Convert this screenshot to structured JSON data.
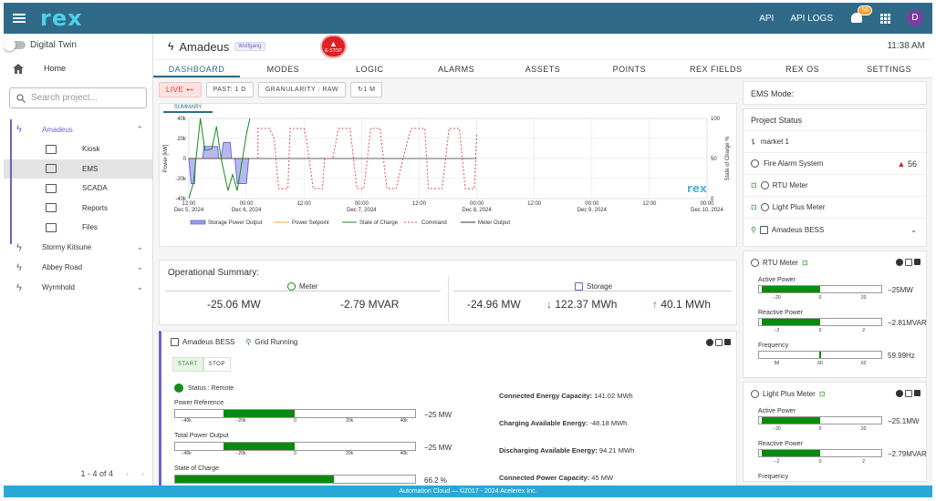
{
  "topbar": {
    "logo": "rex",
    "api": "API",
    "api_logs": "API LOGS",
    "notif_count": "56",
    "avatar": "D"
  },
  "sidebar": {
    "digital_twin": "Digital Twin",
    "home": "Home",
    "search_placeholder": "Search project...",
    "projects": [
      {
        "name": "Amadeus",
        "subs": [
          "Kiosk",
          "EMS",
          "SCADA",
          "Reports",
          "Files"
        ]
      },
      {
        "name": "Stormy Kitsune"
      },
      {
        "name": "Abbey Road"
      },
      {
        "name": "Wyrmhold"
      }
    ],
    "pager": "1 - 4 of 4",
    "prev": "‹",
    "next": "›"
  },
  "header": {
    "title": "Amadeus",
    "tag": "Wolfgang",
    "estop_label": "E-STOP",
    "time": "11:38 AM"
  },
  "tabs": [
    "DASHBOARD",
    "MODES",
    "LOGIC",
    "ALARMS",
    "ASSETS",
    "POINTS",
    "REX FIELDS",
    "REX OS",
    "SETTINGS"
  ],
  "controls": {
    "live": "LIVE",
    "past": "PAST: 1 D",
    "granularity": "GRANULARITY : RAW",
    "refresh": "1 M"
  },
  "chart": {
    "tab": "SUMMARY",
    "watermark": "rex"
  },
  "chart_data": {
    "type": "line",
    "ylabel": "Power [kW]",
    "y2label": "State of Charge %",
    "ylim": [
      -40000,
      40000
    ],
    "y2lim": [
      0,
      100
    ],
    "yticks": [
      "40k",
      "20k",
      "0",
      "-20k",
      "-40k"
    ],
    "y2ticks": [
      "100",
      "50",
      "0"
    ],
    "xticks": [
      {
        "t": "12:00",
        "d": "Dec 5, 2024"
      },
      {
        "t": "00:00",
        "d": "Dec 6, 2024"
      },
      {
        "t": "12:00",
        "d": ""
      },
      {
        "t": "00:00",
        "d": "Dec 7, 2024"
      },
      {
        "t": "12:00",
        "d": ""
      },
      {
        "t": "00:00",
        "d": "Dec 8, 2024"
      },
      {
        "t": "12:00",
        "d": ""
      },
      {
        "t": "00:00",
        "d": "Dec 9, 2024"
      },
      {
        "t": "12:00",
        "d": ""
      },
      {
        "t": "00:00",
        "d": "Dec 10, 2024"
      }
    ],
    "x": [
      0,
      0.5,
      1,
      1.5,
      2,
      2.5,
      3,
      3.5,
      4,
      4.5
    ],
    "series": [
      {
        "name": "Storage Power Output",
        "color": "#6a6ae0",
        "points": [
          [
            0.0,
            0
          ],
          [
            0.02,
            -25000
          ],
          [
            0.05,
            -25000
          ],
          [
            0.06,
            0
          ],
          [
            0.12,
            0
          ],
          [
            0.13,
            12000
          ],
          [
            0.25,
            12000
          ],
          [
            0.26,
            0
          ],
          [
            0.28,
            0
          ],
          [
            0.3,
            16000
          ],
          [
            0.36,
            16000
          ],
          [
            0.37,
            0
          ],
          [
            0.4,
            0
          ],
          [
            0.42,
            -25000
          ],
          [
            0.5,
            -25000
          ],
          [
            0.52,
            0
          ],
          [
            0.53,
            0
          ]
        ]
      },
      {
        "name": "Power Setpoint",
        "color": "#f0a030",
        "points": [
          [
            0.0,
            0
          ],
          [
            0.53,
            0
          ]
        ]
      },
      {
        "name": "State of Charge",
        "color": "#1a8a1a",
        "points": [
          [
            0.0,
            0
          ],
          [
            0.04,
            20
          ],
          [
            0.1,
            100
          ],
          [
            0.14,
            60
          ],
          [
            0.2,
            62
          ],
          [
            0.24,
            90
          ],
          [
            0.28,
            50
          ],
          [
            0.34,
            10
          ],
          [
            0.38,
            30
          ],
          [
            0.42,
            10
          ],
          [
            0.5,
            80
          ],
          [
            0.53,
            100
          ]
        ]
      },
      {
        "name": "Command",
        "color": "#e05050",
        "points": [
          [
            0.6,
            0
          ],
          [
            0.6,
            30000
          ],
          [
            0.7,
            30000
          ],
          [
            0.74,
            20000
          ],
          [
            0.78,
            -30000
          ],
          [
            0.86,
            -30000
          ],
          [
            0.88,
            30000
          ],
          [
            1.0,
            30000
          ],
          [
            1.02,
            20000
          ],
          [
            1.08,
            -30000
          ],
          [
            1.16,
            -30000
          ],
          [
            1.18,
            0
          ],
          [
            1.25,
            0
          ],
          [
            1.3,
            30000
          ],
          [
            1.4,
            30000
          ],
          [
            1.46,
            -30000
          ],
          [
            1.52,
            -30000
          ],
          [
            1.58,
            30000
          ],
          [
            1.66,
            30000
          ],
          [
            1.72,
            -30000
          ],
          [
            1.8,
            -30000
          ],
          [
            1.86,
            0
          ],
          [
            1.93,
            30000
          ],
          [
            2.05,
            30000
          ],
          [
            2.08,
            -30000
          ],
          [
            2.2,
            -30000
          ],
          [
            2.26,
            30000
          ],
          [
            2.35,
            30000
          ],
          [
            2.4,
            -30000
          ],
          [
            2.48,
            -30000
          ],
          [
            2.5,
            25000
          ]
        ]
      },
      {
        "name": "Meter Output",
        "color": "#333333",
        "points": [
          [
            0.0,
            0
          ],
          [
            2.5,
            0
          ]
        ]
      }
    ],
    "legend": [
      "Storage Power Output",
      "Power Setpoint",
      "State of Charge",
      "Command",
      "Meter Output"
    ]
  },
  "op_summary": {
    "title": "Operational Summary:",
    "meter_label": "Meter",
    "storage_label": "Storage",
    "meter_mw": "-25.06 MW",
    "meter_mvar": "-2.79 MVAR",
    "storage_mw": "-24.96 MW",
    "storage_down": "122.37 MWh",
    "storage_up": "40.1 MWh"
  },
  "bess": {
    "name": "Amadeus BESS",
    "status": "Grid Running",
    "start": "START",
    "stop": "STOP",
    "status_remote": "Status : Remote",
    "bars": [
      {
        "label": "Power Reference",
        "value": "−25 MW",
        "fill_from": 0.5,
        "fill_to": 0.2
      },
      {
        "label": "Total Power Output",
        "value": "−25 MW",
        "fill_from": 0.5,
        "fill_to": 0.2
      },
      {
        "label": "State of Charge",
        "value": "66.2 %",
        "fill_from": 0,
        "fill_to": 0.662
      }
    ],
    "bar_ticks": [
      "−40k",
      "−20k",
      "0",
      "20k",
      "40k"
    ],
    "info": [
      {
        "k": "Connected Energy Capacity:",
        "v": "141.02 MWh"
      },
      {
        "k": "Charging Available Energy:",
        "v": "-48.18 MWh"
      },
      {
        "k": "Discharging Available Energy:",
        "v": "94.21 MWh"
      },
      {
        "k": "Connected Power Capacity:",
        "v": "45 MW"
      }
    ]
  },
  "right": {
    "ems_mode": "EMS Mode:",
    "project_status": "Project Status",
    "items": [
      {
        "name": "market 1",
        "badge": ""
      },
      {
        "name": "Fire Alarm System",
        "badge": "56"
      },
      {
        "name": "RTU Meter",
        "badge": ""
      },
      {
        "name": "Light Plus Meter",
        "badge": ""
      },
      {
        "name": "Amadeus BESS",
        "badge": ""
      }
    ],
    "meters": [
      {
        "name": "RTU Meter",
        "rows": [
          {
            "label": "Active Power",
            "value": "−25MW",
            "ticks": [
              "−20",
              "0",
              "20"
            ]
          },
          {
            "label": "Reactive Power",
            "value": "−2.81MVAR",
            "ticks": [
              "−2",
              "0",
              "2"
            ]
          },
          {
            "label": "Frequency",
            "value": "59.99Hz",
            "ticks": [
              "58",
              "60",
              "62"
            ]
          }
        ]
      },
      {
        "name": "Light Plus Meter",
        "rows": [
          {
            "label": "Active Power",
            "value": "−25.1MW",
            "ticks": [
              "−20",
              "0",
              "20"
            ]
          },
          {
            "label": "Reactive Power",
            "value": "−2.79MVAR",
            "ticks": [
              "−2",
              "0",
              "2"
            ]
          },
          {
            "label": "Frequency",
            "value": "",
            "ticks": []
          }
        ]
      }
    ]
  },
  "footer": "Automation Cloud — ©2017 - 2024 Acelerex Inc."
}
